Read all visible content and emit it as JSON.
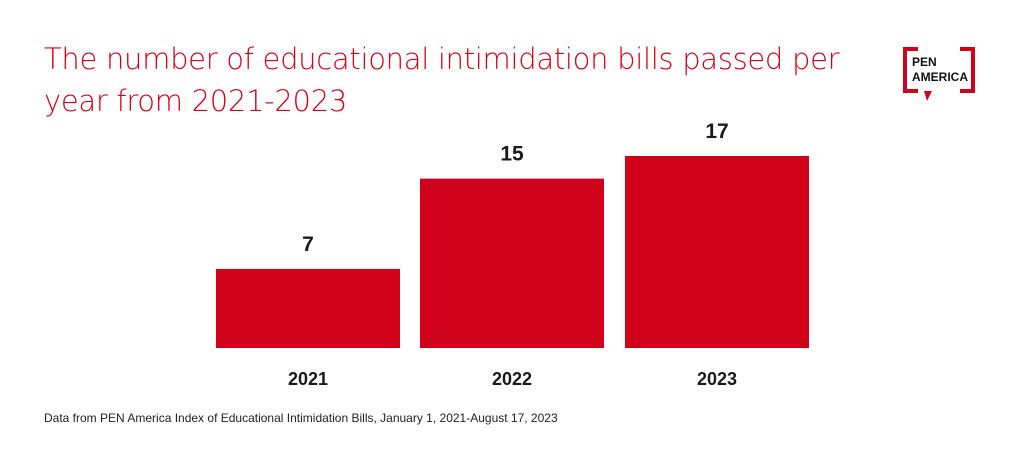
{
  "logo": {
    "line1": "PEN",
    "line2": "AMERICA"
  },
  "source": "Data from PEN America Index of Educational Intimidation Bills, January 1, 2021-August 17, 2023",
  "colors": {
    "accent": "#d0021b",
    "text": "#1a1a1a"
  },
  "chart_data": {
    "type": "bar",
    "title": "The number of educational intimidation bills passed per year from 2021-2023",
    "categories": [
      "2021",
      "2022",
      "2023"
    ],
    "values": [
      7,
      15,
      17
    ],
    "data_labels": [
      "7",
      "15",
      "17"
    ],
    "xlabel": "",
    "ylabel": "",
    "ylim": [
      0,
      17
    ],
    "grid": false,
    "legend": "none"
  }
}
